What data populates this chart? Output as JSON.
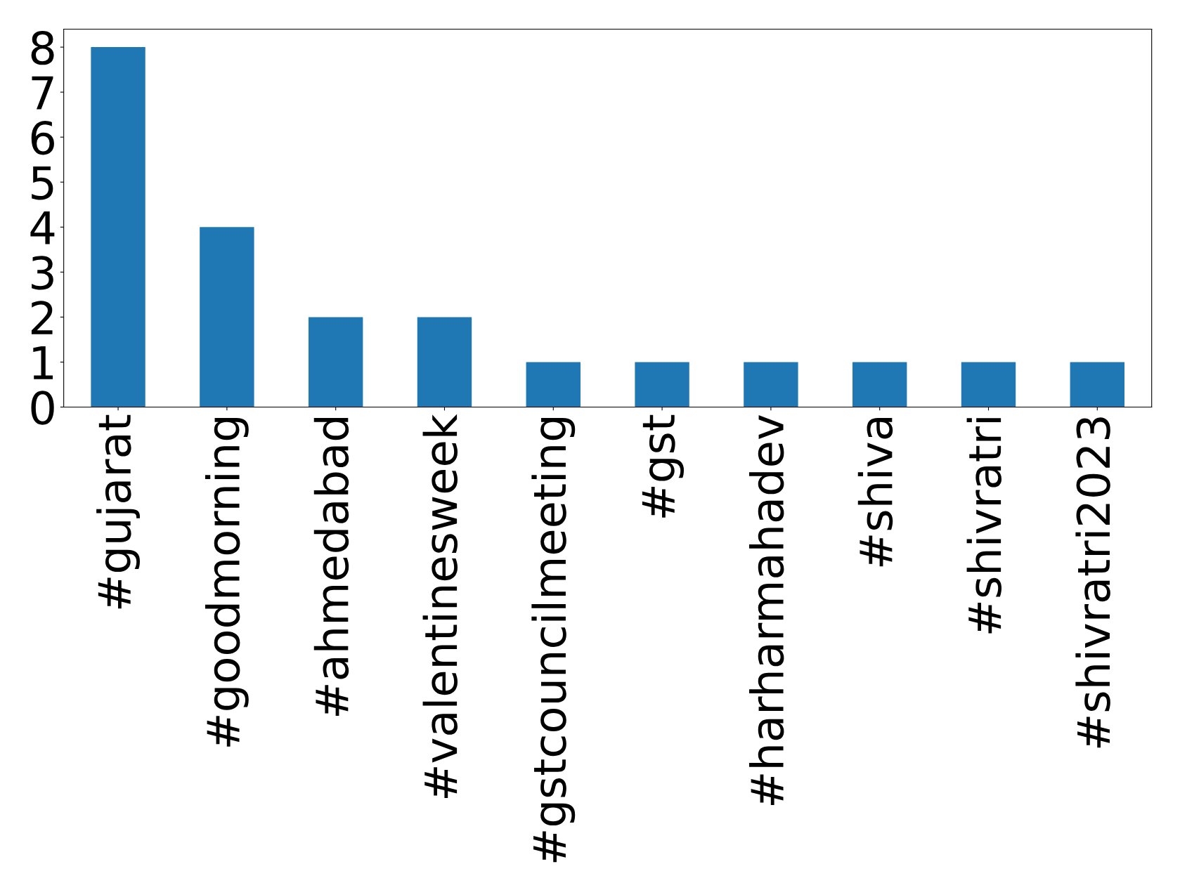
{
  "chart_data": {
    "type": "bar",
    "categories": [
      "#gujarat",
      "#goodmorning",
      "#ahmedabad",
      "#valentinesweek",
      "#gstcouncilmeeting",
      "#gst",
      "#harharmahadev",
      "#shiva",
      "#shivratri",
      "#shivratri2023"
    ],
    "values": [
      8,
      4,
      2,
      2,
      1,
      1,
      1,
      1,
      1,
      1
    ],
    "color": "#1f77b4",
    "ylim": [
      0,
      8.4
    ],
    "yticks": [
      0,
      1,
      2,
      3,
      4,
      5,
      6,
      7,
      8
    ],
    "grid": false,
    "legend": false
  }
}
